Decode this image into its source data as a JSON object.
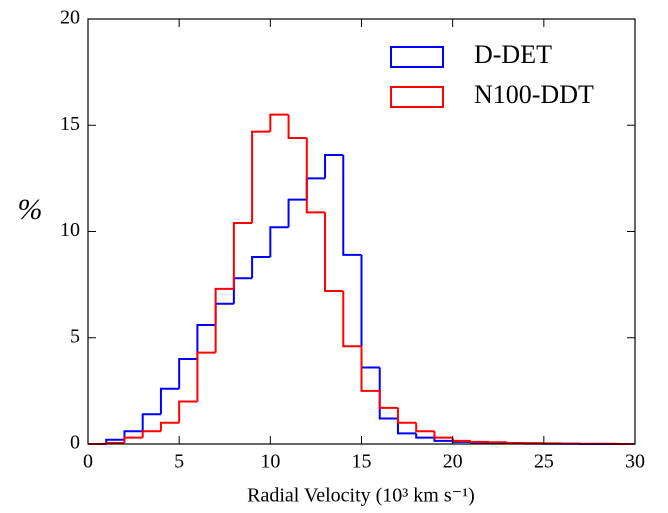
{
  "chart_data": {
    "type": "histogram",
    "xlabel": "Radial Velocity (10³ km s⁻¹)",
    "ylabel": "%",
    "bins": [
      0,
      1,
      2,
      3,
      4,
      5,
      6,
      7,
      8,
      9,
      10,
      11,
      12,
      13,
      14,
      15,
      16,
      17,
      18,
      19,
      20,
      21,
      22,
      23,
      24,
      25,
      26,
      27,
      28,
      29,
      30
    ],
    "series": [
      {
        "name": "D-DET",
        "color": "#0000ff",
        "values": [
          0,
          0.2,
          0.6,
          1.4,
          2.6,
          4.0,
          5.6,
          6.6,
          7.8,
          8.8,
          10.2,
          11.5,
          12.5,
          13.6,
          8.9,
          3.6,
          1.2,
          0.5,
          0.3,
          0.15,
          0.1,
          0.05,
          0.05,
          0.03,
          0.02,
          0.01,
          0.01,
          0,
          0,
          0
        ]
      },
      {
        "name": "N100-DDT",
        "color": "#ff0000",
        "values": [
          0,
          0.05,
          0.3,
          0.6,
          1.0,
          2.0,
          4.3,
          7.3,
          10.4,
          14.7,
          15.5,
          14.4,
          10.9,
          7.2,
          4.6,
          2.5,
          1.7,
          1.0,
          0.6,
          0.3,
          0.15,
          0.1,
          0.08,
          0.05,
          0.04,
          0.03,
          0.02,
          0.01,
          0.01,
          0
        ]
      }
    ],
    "xlim": [
      0,
      30
    ],
    "xticks": [
      0,
      5,
      10,
      15,
      20,
      25,
      30
    ],
    "ylim": [
      0,
      20
    ],
    "yticks": [
      0,
      5,
      10,
      15,
      20
    ],
    "legend": "upper right"
  }
}
